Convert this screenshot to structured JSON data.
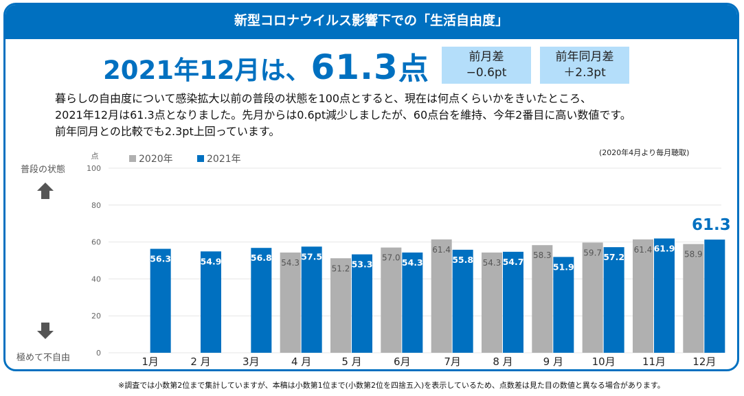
{
  "banner": {
    "title": "新型コロナウイルス影響下での「生活自由度」"
  },
  "headline": {
    "prefix": "2021年12月は、",
    "score": "61.3",
    "unit": "点"
  },
  "diffs": [
    {
      "label": "前月差",
      "value": "−0.6pt"
    },
    {
      "label": "前年同月差",
      "value": "＋2.3pt"
    }
  ],
  "description": [
    "暮らしの自由度について感染拡大以前の普段の状態を100点とすると、現在は何点くらいかをきいたところ、",
    "2021年12月は61.3点となりました。先月からは0.6pt減少しましたが、60点台を維持、今年2番目に高い数値です。",
    "前年同月との比較でも2.3pt上回っています。"
  ],
  "side_labels": {
    "top": "普段の状態",
    "bottom": "極めて不自由",
    "up_icon": "arrow-up",
    "down_icon": "arrow-down"
  },
  "survey_note": "(2020年4月より毎月聴取)",
  "footnote": "※調査では小数第2位まで集計していますが、本稿は小数第1位まで(小数第2位を四捨五入)を表示しているため、点数差は見た目の数値と異なる場合があります。",
  "colors": {
    "brand": "#0070c0",
    "series_2020": "#b0b0b0",
    "series_2021": "#0070c0",
    "diff_box": "#b4defa"
  },
  "chart_data": {
    "type": "bar",
    "title": "新型コロナウイルス影響下での「生活自由度」",
    "xlabel": "",
    "ylabel": "点",
    "ylim": [
      0,
      100
    ],
    "yticks": [
      0,
      20,
      40,
      60,
      80,
      100
    ],
    "grid": true,
    "legend": "top-left",
    "categories": [
      "1月",
      "2 月",
      "3月",
      "4 月",
      "5 月",
      "6月",
      "7月",
      "8 月",
      "9 月",
      "10月",
      "11月",
      "12月"
    ],
    "series": [
      {
        "name": "2020年",
        "values": [
          null,
          null,
          null,
          54.3,
          51.2,
          57.0,
          61.4,
          54.3,
          58.3,
          59.7,
          61.4,
          58.9
        ]
      },
      {
        "name": "2021年",
        "values": [
          56.3,
          54.9,
          56.8,
          57.5,
          53.3,
          54.3,
          55.8,
          54.7,
          51.9,
          57.2,
          61.9,
          61.3
        ]
      }
    ],
    "annotations": [
      {
        "category": "12月",
        "series": "2021年",
        "text": "61.3"
      }
    ]
  }
}
